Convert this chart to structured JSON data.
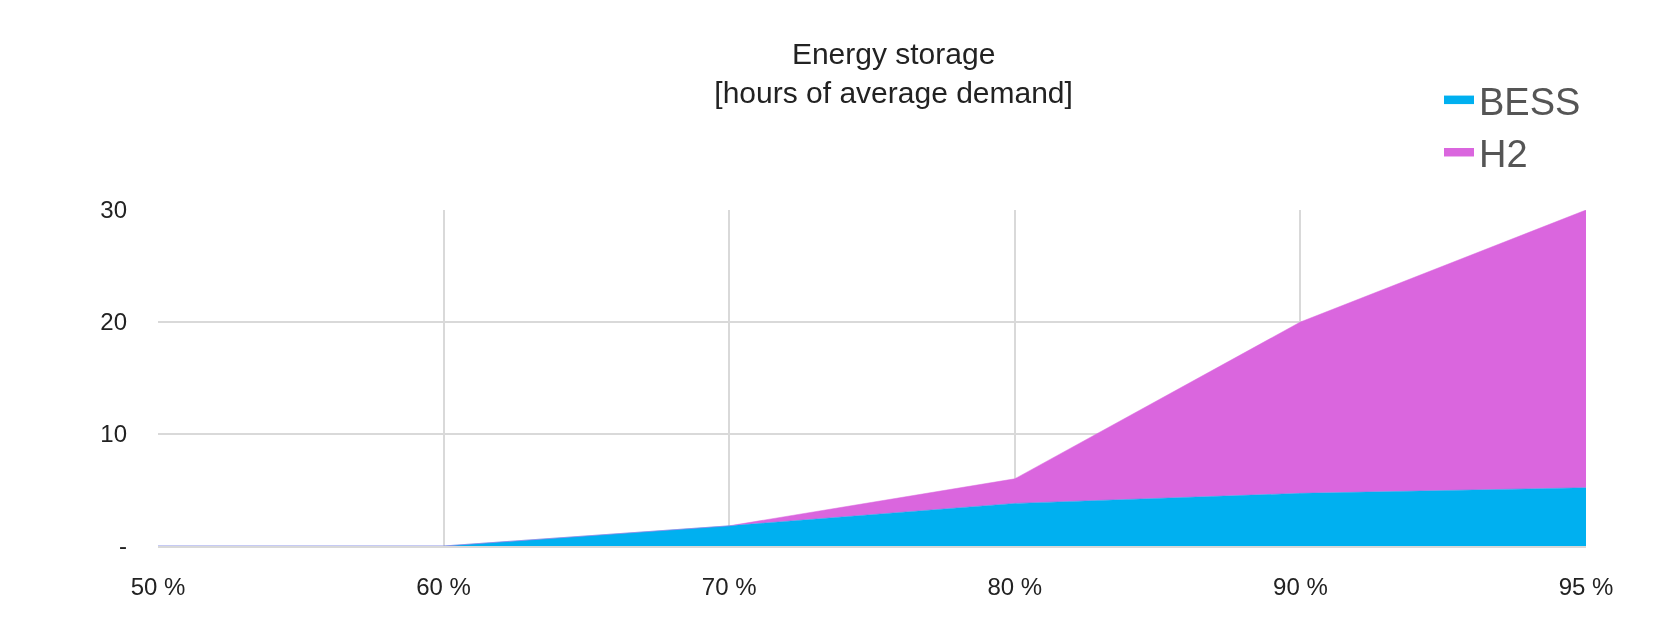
{
  "chart_data": {
    "type": "area",
    "title": "Energy storage\n[hours of average demand]",
    "stacked": true,
    "categories": [
      "50 %",
      "60 %",
      "70 %",
      "80 %",
      "90 %",
      "95 %"
    ],
    "series": [
      {
        "name": "BESS",
        "color": "#00b0f0",
        "values": [
          0,
          0,
          1.8,
          3.8,
          4.7,
          5.2
        ]
      },
      {
        "name": "H2",
        "color": "#da66de",
        "values": [
          0,
          0,
          0,
          2.2,
          15.3,
          24.8
        ]
      }
    ],
    "ylim": [
      0,
      30
    ],
    "yticks": [
      {
        "value": 0,
        "label": "-"
      },
      10,
      20,
      30
    ],
    "grid": true,
    "legend": "top right"
  }
}
